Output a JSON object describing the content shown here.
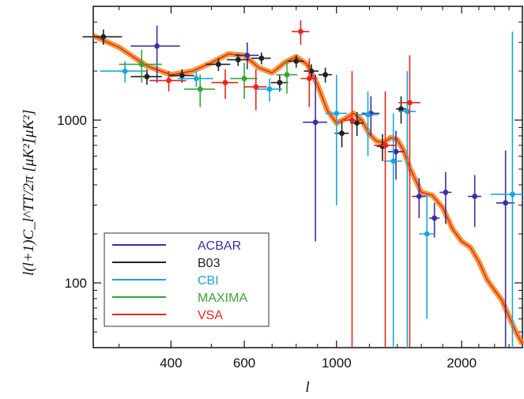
{
  "chart_data": {
    "type": "scatter",
    "title": "",
    "xlabel": "l",
    "ylabel": "l(l+1)C_l^TT/2π  [μK²]",
    "xscale": "log",
    "yscale": "log",
    "xlim": [
      260,
      2800
    ],
    "ylim": [
      40,
      5000
    ],
    "xticks": [
      400,
      600,
      1000,
      2000
    ],
    "xtick_labels": [
      "400",
      "600",
      "1000",
      "2000"
    ],
    "yticks": [
      100,
      1000
    ],
    "ytick_labels": [
      "100",
      "1000"
    ],
    "y_unit_label": "[μK²]",
    "grid": false,
    "legend_position": "bottom-left",
    "legend": [
      {
        "name": "ACBAR",
        "color": "#3b2fa0"
      },
      {
        "name": "B03",
        "color": "#222222"
      },
      {
        "name": "CBI",
        "color": "#1aa6d9"
      },
      {
        "name": "MAXIMA",
        "color": "#3aa335"
      },
      {
        "name": "VSA",
        "color": "#e8261e"
      }
    ],
    "model_curve": {
      "color": "#f08a1c",
      "points": [
        [
          260,
          3300
        ],
        [
          300,
          2800
        ],
        [
          350,
          2150
        ],
        [
          400,
          1900
        ],
        [
          450,
          2000
        ],
        [
          500,
          2250
        ],
        [
          550,
          2550
        ],
        [
          600,
          2500
        ],
        [
          650,
          2100
        ],
        [
          700,
          1950
        ],
        [
          750,
          2250
        ],
        [
          800,
          2450
        ],
        [
          850,
          2200
        ],
        [
          900,
          1650
        ],
        [
          950,
          1150
        ],
        [
          1000,
          960
        ],
        [
          1050,
          1020
        ],
        [
          1100,
          1100
        ],
        [
          1150,
          1000
        ],
        [
          1200,
          820
        ],
        [
          1250,
          740
        ],
        [
          1300,
          730
        ],
        [
          1350,
          780
        ],
        [
          1400,
          760
        ],
        [
          1450,
          650
        ],
        [
          1500,
          510
        ],
        [
          1600,
          360
        ],
        [
          1700,
          345
        ],
        [
          1800,
          290
        ],
        [
          1900,
          215
        ],
        [
          2000,
          180
        ],
        [
          2100,
          165
        ],
        [
          2200,
          135
        ],
        [
          2300,
          105
        ],
        [
          2400,
          90
        ],
        [
          2500,
          78
        ],
        [
          2600,
          62
        ],
        [
          2700,
          50
        ],
        [
          2800,
          42
        ]
      ]
    },
    "series": [
      {
        "name": "ACBAR",
        "color": "#3b2fa0",
        "points": [
          {
            "x": 370,
            "y": 2850,
            "xerr": 50,
            "yl": 1700,
            "yh": 3800
          },
          {
            "x": 610,
            "y": 2500,
            "xerr": 40,
            "yl": 2050,
            "yh": 3000
          },
          {
            "x": 890,
            "y": 970,
            "xerr": 60,
            "yl": 180,
            "yh": 1900
          },
          {
            "x": 1210,
            "y": 1100,
            "xerr": 60,
            "yl": 800,
            "yh": 1400
          },
          {
            "x": 1390,
            "y": 640,
            "xerr": 60,
            "yl": 430,
            "yh": 860
          },
          {
            "x": 1580,
            "y": 340,
            "xerr": 60,
            "yl": 250,
            "yh": 440
          },
          {
            "x": 1720,
            "y": 250,
            "xerr": 50,
            "yl": 190,
            "yh": 310
          },
          {
            "x": 1830,
            "y": 360,
            "xerr": 60,
            "yl": 230,
            "yh": 480
          },
          {
            "x": 2150,
            "y": 340,
            "xerr": 80,
            "yl": 220,
            "yh": 460
          },
          {
            "x": 2550,
            "y": 310,
            "xerr": 130,
            "yl": 40,
            "yh": 650
          }
        ]
      },
      {
        "name": "B03",
        "color": "#222222",
        "points": [
          {
            "x": 275,
            "y": 3250,
            "xerr": 30,
            "yl": 2900,
            "yh": 3600
          },
          {
            "x": 350,
            "y": 1850,
            "xerr": 30,
            "yl": 1650,
            "yh": 2050
          },
          {
            "x": 425,
            "y": 1880,
            "xerr": 30,
            "yl": 1700,
            "yh": 2050
          },
          {
            "x": 520,
            "y": 2200,
            "xerr": 35,
            "yl": 2000,
            "yh": 2400
          },
          {
            "x": 580,
            "y": 2350,
            "xerr": 35,
            "yl": 2150,
            "yh": 2550
          },
          {
            "x": 660,
            "y": 2400,
            "xerr": 35,
            "yl": 2200,
            "yh": 2600
          },
          {
            "x": 730,
            "y": 1700,
            "xerr": 35,
            "yl": 1500,
            "yh": 1900
          },
          {
            "x": 800,
            "y": 2300,
            "xerr": 35,
            "yl": 2100,
            "yh": 2500
          },
          {
            "x": 870,
            "y": 2000,
            "xerr": 35,
            "yl": 1800,
            "yh": 2200
          },
          {
            "x": 940,
            "y": 1900,
            "xerr": 35,
            "yl": 1700,
            "yh": 2100
          },
          {
            "x": 1030,
            "y": 830,
            "xerr": 40,
            "yl": 680,
            "yh": 980
          },
          {
            "x": 1120,
            "y": 960,
            "xerr": 40,
            "yl": 800,
            "yh": 1120
          },
          {
            "x": 1290,
            "y": 690,
            "xerr": 40,
            "yl": 560,
            "yh": 820
          },
          {
            "x": 1430,
            "y": 1170,
            "xerr": 40,
            "yl": 950,
            "yh": 1400
          }
        ]
      },
      {
        "name": "CBI",
        "color": "#1aa6d9",
        "points": [
          {
            "x": 310,
            "y": 2000,
            "xerr": 40,
            "yl": 1700,
            "yh": 2300
          },
          {
            "x": 460,
            "y": 1800,
            "xerr": 45,
            "yl": 1600,
            "yh": 2000
          },
          {
            "x": 690,
            "y": 1550,
            "xerr": 50,
            "yl": 1300,
            "yh": 1800
          },
          {
            "x": 1000,
            "y": 1100,
            "xerr": 60,
            "yl": 300,
            "yh": 1900
          },
          {
            "x": 1190,
            "y": 1080,
            "xerr": 70,
            "yl": 600,
            "yh": 1500
          },
          {
            "x": 1370,
            "y": 560,
            "xerr": 70,
            "yl": 40,
            "yh": 1100
          },
          {
            "x": 1480,
            "y": 1130,
            "xerr": 70,
            "yl": 40,
            "yh": 2000
          },
          {
            "x": 1650,
            "y": 200,
            "xerr": 70,
            "yl": 60,
            "yh": 350
          },
          {
            "x": 2650,
            "y": 350,
            "xerr": 300,
            "yl": 40,
            "yh": 3500
          }
        ]
      },
      {
        "name": "MAXIMA",
        "color": "#3aa335",
        "points": [
          {
            "x": 340,
            "y": 2200,
            "xerr": 40,
            "yl": 1700,
            "yh": 2700
          },
          {
            "x": 470,
            "y": 1550,
            "xerr": 40,
            "yl": 1200,
            "yh": 1900
          },
          {
            "x": 600,
            "y": 1800,
            "xerr": 45,
            "yl": 1350,
            "yh": 2250
          },
          {
            "x": 760,
            "y": 1900,
            "xerr": 45,
            "yl": 1450,
            "yh": 2350
          }
        ]
      },
      {
        "name": "VSA",
        "color": "#e8261e",
        "points": [
          {
            "x": 395,
            "y": 1750,
            "xerr": 40,
            "yl": 1500,
            "yh": 2000
          },
          {
            "x": 540,
            "y": 1700,
            "xerr": 40,
            "yl": 1350,
            "yh": 2050
          },
          {
            "x": 640,
            "y": 1600,
            "xerr": 40,
            "yl": 1150,
            "yh": 2050
          },
          {
            "x": 820,
            "y": 3500,
            "xerr": 40,
            "yl": 2900,
            "yh": 4100
          },
          {
            "x": 860,
            "y": 1800,
            "xerr": 40,
            "yl": 1200,
            "yh": 2400
          },
          {
            "x": 1090,
            "y": 1000,
            "xerr": 60,
            "yl": 40,
            "yh": 2000
          },
          {
            "x": 1310,
            "y": 700,
            "xerr": 80,
            "yl": 40,
            "yh": 1500
          },
          {
            "x": 1500,
            "y": 1280,
            "xerr": 90,
            "yl": 40,
            "yh": 2500
          }
        ]
      }
    ]
  }
}
